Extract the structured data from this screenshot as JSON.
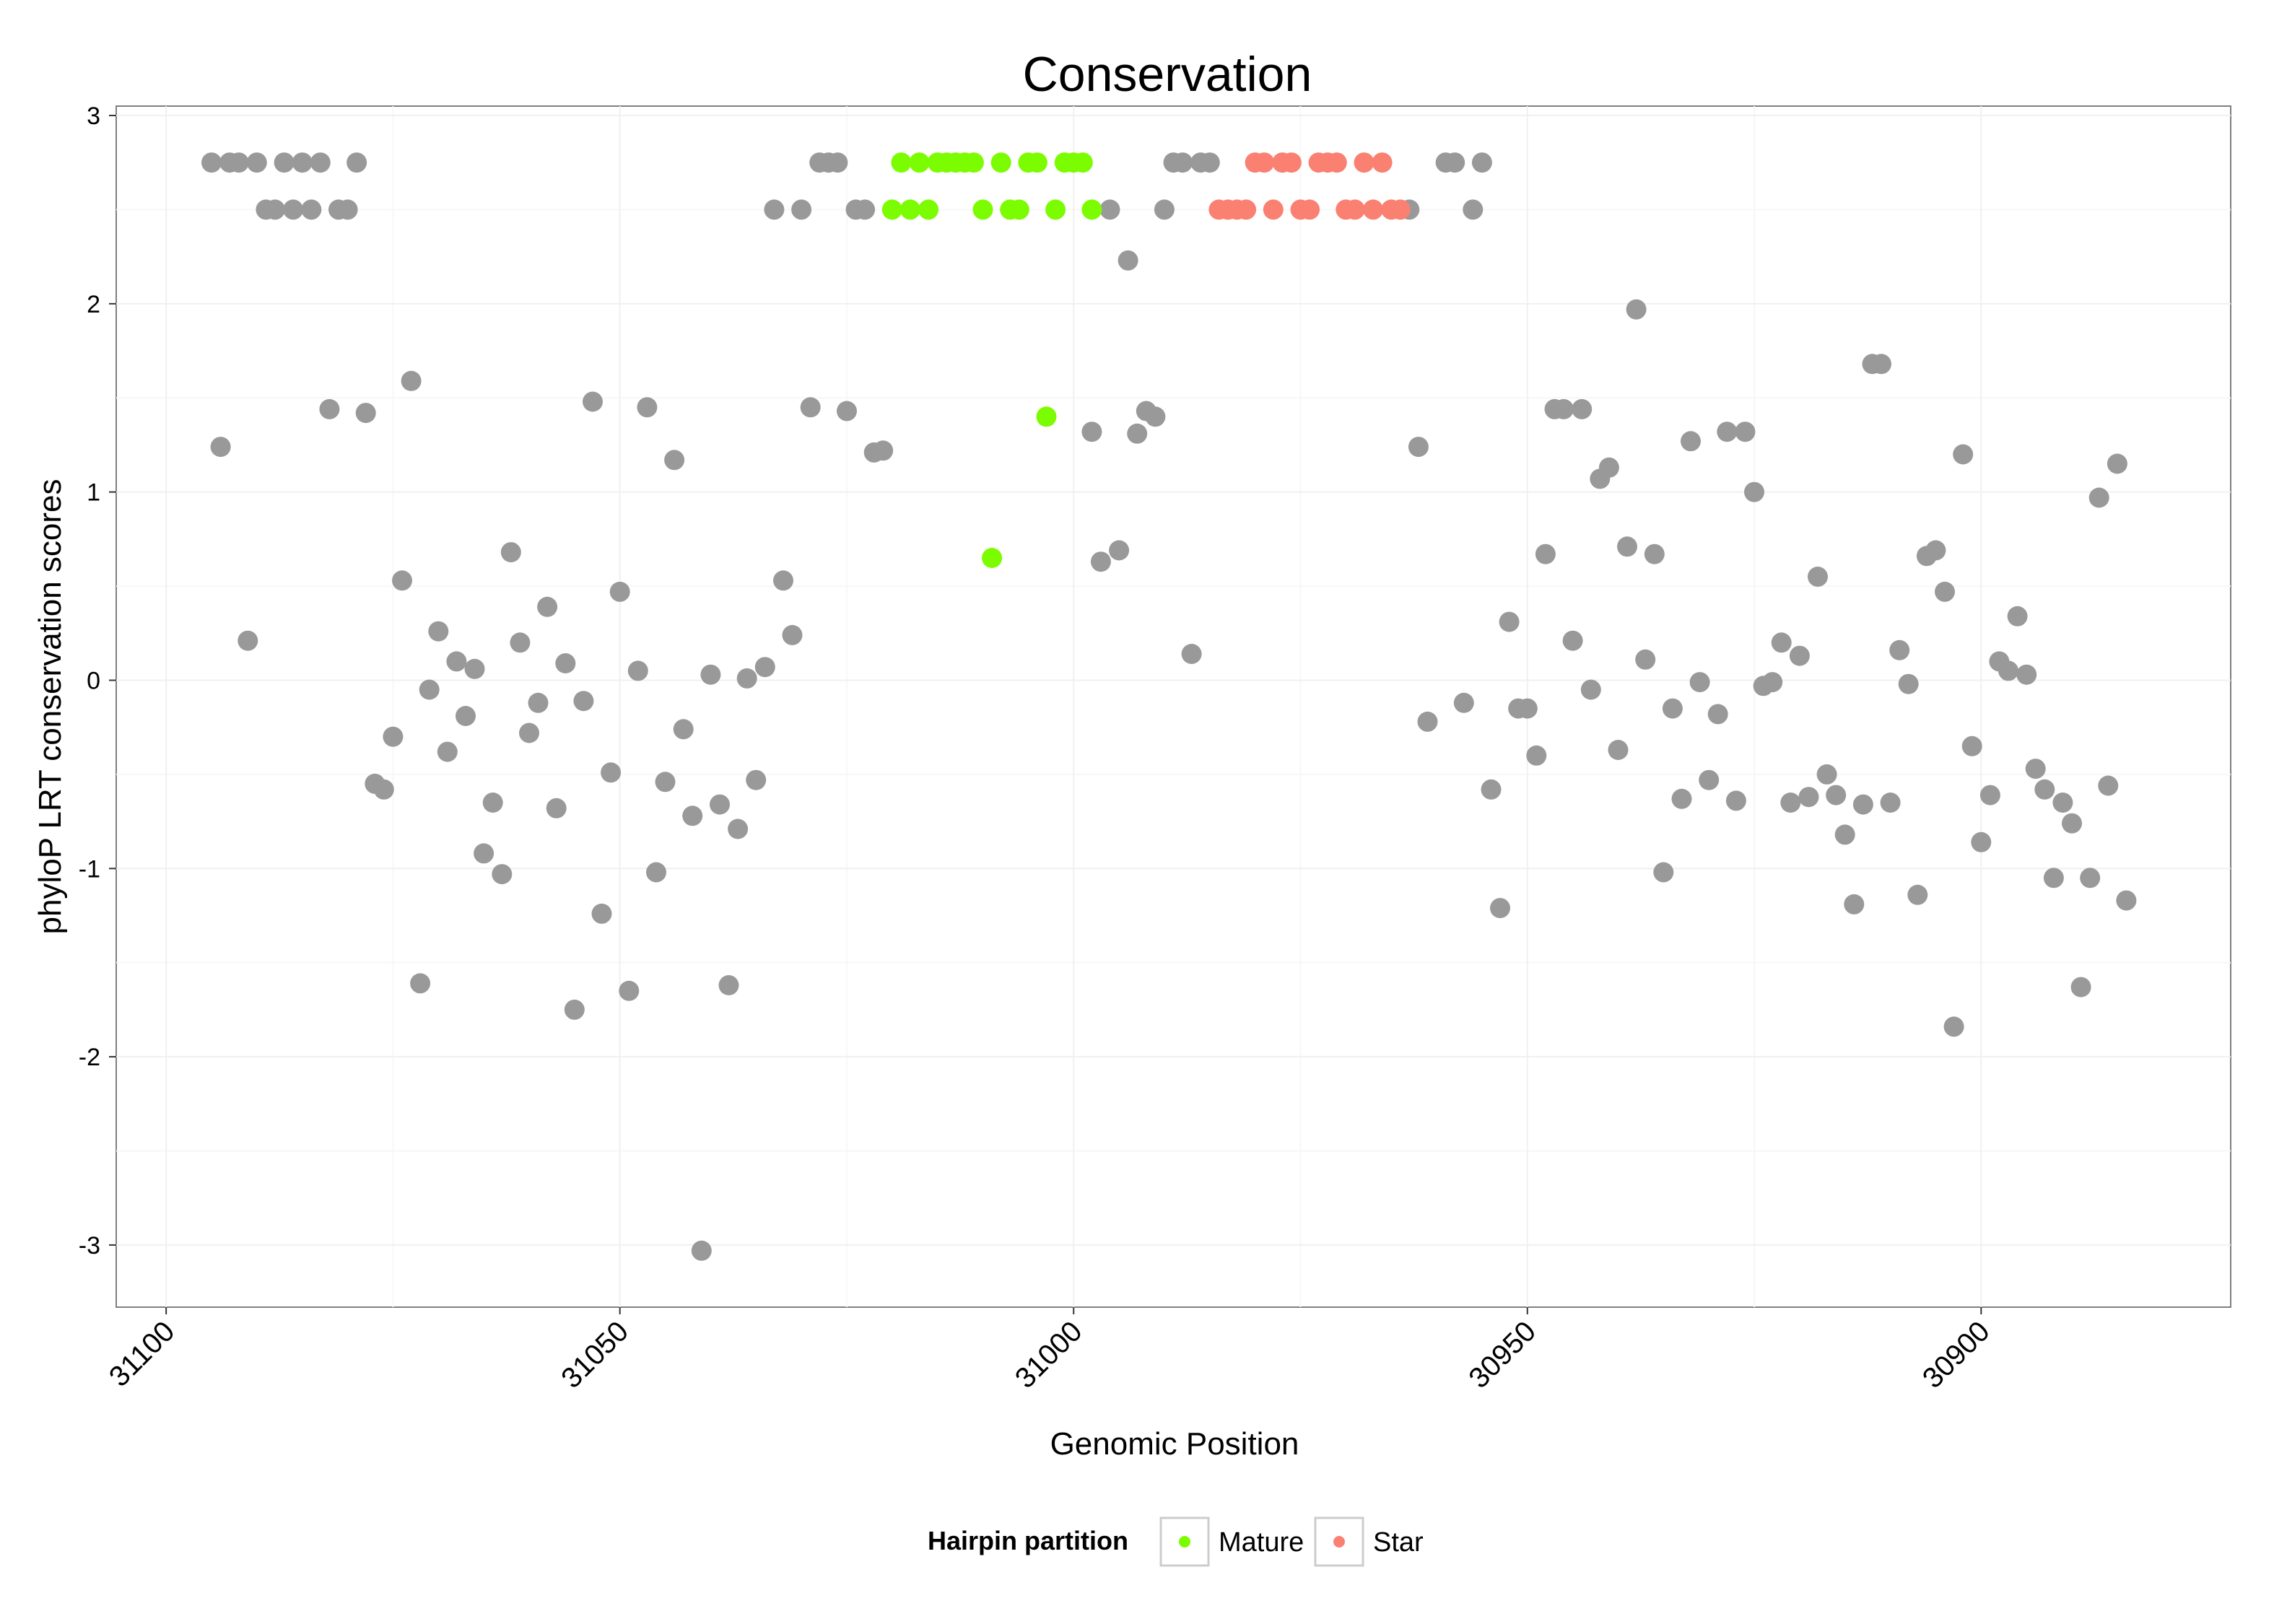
{
  "chart_data": {
    "type": "scatter",
    "title": "Conservation",
    "xlabel": "Genomic Position",
    "ylabel": "phyloP LRT conservation scores",
    "xlim": [
      31105.5,
      30872.5
    ],
    "ylim": [
      -3.33,
      3.05
    ],
    "x_reversed": true,
    "x_ticks": [
      31100,
      31050,
      31000,
      30950,
      30900
    ],
    "x_tick_labels": [
      "31100",
      "31050",
      "31000",
      "30950",
      "30900"
    ],
    "y_ticks": [
      3,
      2,
      1,
      0,
      -1,
      -2,
      -3
    ],
    "y_tick_labels": [
      "3",
      "2",
      "1",
      "0",
      "-1",
      "-2",
      "-3"
    ],
    "grid": true,
    "legend": {
      "title": "Hairpin partition",
      "position": "bottom",
      "entries": [
        {
          "label": "Mature",
          "color": "#7CFC00"
        },
        {
          "label": "Star",
          "color": "#FA8072"
        }
      ]
    },
    "colors": {
      "Other": "#999999",
      "Mature": "#7CFC00",
      "Star": "#FA8072"
    },
    "series": [
      {
        "name": "Other",
        "points": [
          [
            31095,
            2.75
          ],
          [
            31093,
            2.75
          ],
          [
            31092,
            2.75
          ],
          [
            31090,
            2.75
          ],
          [
            31087,
            2.75
          ],
          [
            31085,
            2.75
          ],
          [
            31083,
            2.75
          ],
          [
            31079,
            2.75
          ],
          [
            31089,
            2.5
          ],
          [
            31088,
            2.5
          ],
          [
            31086,
            2.5
          ],
          [
            31084,
            2.5
          ],
          [
            31081,
            2.5
          ],
          [
            31080,
            2.5
          ],
          [
            31094,
            1.24
          ],
          [
            31091,
            0.21
          ],
          [
            31082,
            1.44
          ],
          [
            31078,
            1.42
          ],
          [
            31073,
            1.59
          ],
          [
            31077,
            -0.55
          ],
          [
            31076,
            -0.58
          ],
          [
            31075,
            -0.3
          ],
          [
            31074,
            0.53
          ],
          [
            31072,
            -1.61
          ],
          [
            31071,
            -0.05
          ],
          [
            31070,
            0.26
          ],
          [
            31069,
            -0.38
          ],
          [
            31068,
            0.1
          ],
          [
            31067,
            -0.19
          ],
          [
            31066,
            0.06
          ],
          [
            31065,
            -0.92
          ],
          [
            31064,
            -0.65
          ],
          [
            31063,
            -1.03
          ],
          [
            31062,
            0.68
          ],
          [
            31061,
            0.2
          ],
          [
            31060,
            -0.28
          ],
          [
            31059,
            -0.12
          ],
          [
            31058,
            0.39
          ],
          [
            31057,
            -0.68
          ],
          [
            31056,
            0.09
          ],
          [
            31055,
            -1.75
          ],
          [
            31054,
            -0.11
          ],
          [
            31053,
            1.48
          ],
          [
            31052,
            -1.24
          ],
          [
            31051,
            -0.49
          ],
          [
            31050,
            0.47
          ],
          [
            31049,
            -1.65
          ],
          [
            31048,
            0.05
          ],
          [
            31047,
            1.45
          ],
          [
            31046,
            -1.02
          ],
          [
            31045,
            -0.54
          ],
          [
            31044,
            1.17
          ],
          [
            31043,
            -0.26
          ],
          [
            31042,
            -0.72
          ],
          [
            31041,
            -3.03
          ],
          [
            31040,
            0.03
          ],
          [
            31039,
            -0.66
          ],
          [
            31038,
            -1.62
          ],
          [
            31037,
            -0.79
          ],
          [
            31036,
            0.01
          ],
          [
            31035,
            -0.53
          ],
          [
            31034,
            0.07
          ],
          [
            31033,
            2.5
          ],
          [
            31032,
            0.53
          ],
          [
            31031,
            0.24
          ],
          [
            31030,
            2.5
          ],
          [
            31029,
            1.45
          ],
          [
            31028,
            2.75
          ],
          [
            31027,
            2.75
          ],
          [
            31026,
            2.75
          ],
          [
            31025,
            1.43
          ],
          [
            31024,
            2.5
          ],
          [
            31023,
            2.5
          ],
          [
            31022,
            1.21
          ],
          [
            31021,
            1.22
          ],
          [
            30998,
            1.32
          ],
          [
            30997,
            0.63
          ],
          [
            30996,
            2.5
          ],
          [
            30995,
            0.69
          ],
          [
            30994,
            2.23
          ],
          [
            30993,
            1.31
          ],
          [
            30992,
            1.43
          ],
          [
            30991,
            1.4
          ],
          [
            30990,
            2.5
          ],
          [
            30989,
            2.75
          ],
          [
            30988,
            2.75
          ],
          [
            30987,
            0.14
          ],
          [
            30986,
            2.75
          ],
          [
            30985,
            2.75
          ],
          [
            30963,
            2.5
          ],
          [
            30962,
            1.24
          ],
          [
            30961,
            -0.22
          ],
          [
            30959,
            2.75
          ],
          [
            30958,
            2.75
          ],
          [
            30957,
            -0.12
          ],
          [
            30956,
            2.5
          ],
          [
            30955,
            2.75
          ],
          [
            30954,
            -0.58
          ],
          [
            30953,
            -1.21
          ],
          [
            30952,
            0.31
          ],
          [
            30951,
            -0.15
          ],
          [
            30950,
            -0.15
          ],
          [
            30949,
            -0.4
          ],
          [
            30948,
            0.67
          ],
          [
            30947,
            1.44
          ],
          [
            30946,
            1.44
          ],
          [
            30945,
            0.21
          ],
          [
            30944,
            1.44
          ],
          [
            30943,
            -0.05
          ],
          [
            30942,
            1.07
          ],
          [
            30941,
            1.13
          ],
          [
            30940,
            -0.37
          ],
          [
            30939,
            0.71
          ],
          [
            30938,
            1.97
          ],
          [
            30937,
            0.11
          ],
          [
            30936,
            0.67
          ],
          [
            30935,
            -1.02
          ],
          [
            30934,
            -0.15
          ],
          [
            30933,
            -0.63
          ],
          [
            30932,
            1.27
          ],
          [
            30931,
            -0.01
          ],
          [
            30930,
            -0.53
          ],
          [
            30929,
            -0.18
          ],
          [
            30928,
            1.32
          ],
          [
            30927,
            -0.64
          ],
          [
            30926,
            1.32
          ],
          [
            30925,
            1.0
          ],
          [
            30924,
            -0.03
          ],
          [
            30923,
            -0.01
          ],
          [
            30922,
            0.2
          ],
          [
            30921,
            -0.65
          ],
          [
            30920,
            0.13
          ],
          [
            30919,
            -0.62
          ],
          [
            30918,
            0.55
          ],
          [
            30917,
            -0.5
          ],
          [
            30916,
            -0.61
          ],
          [
            30915,
            -0.82
          ],
          [
            30914,
            -1.19
          ],
          [
            30913,
            -0.66
          ],
          [
            30912,
            1.68
          ],
          [
            30911,
            1.68
          ],
          [
            30910,
            -0.65
          ],
          [
            30909,
            0.16
          ],
          [
            30908,
            -0.02
          ],
          [
            30907,
            -1.14
          ],
          [
            30906,
            0.66
          ],
          [
            30905,
            0.69
          ],
          [
            30904,
            0.47
          ],
          [
            30903,
            -1.84
          ],
          [
            30902,
            1.2
          ],
          [
            30901,
            -0.35
          ],
          [
            30900,
            -0.86
          ],
          [
            30899,
            -0.61
          ],
          [
            30898,
            0.1
          ],
          [
            30897,
            0.05
          ],
          [
            30896,
            0.34
          ],
          [
            30895,
            0.03
          ],
          [
            30894,
            -0.47
          ],
          [
            30893,
            -0.58
          ],
          [
            30892,
            -1.05
          ],
          [
            30891,
            -0.65
          ],
          [
            30890,
            -0.76
          ],
          [
            30889,
            -1.63
          ],
          [
            30888,
            -1.05
          ],
          [
            30887,
            0.97
          ],
          [
            30886,
            -0.56
          ],
          [
            30885,
            1.15
          ],
          [
            30884,
            -1.17
          ]
        ]
      },
      {
        "name": "Mature",
        "points": [
          [
            31020,
            2.5
          ],
          [
            31019,
            2.75
          ],
          [
            31018,
            2.5
          ],
          [
            31017,
            2.75
          ],
          [
            31016,
            2.5
          ],
          [
            31015,
            2.75
          ],
          [
            31014,
            2.75
          ],
          [
            31013,
            2.75
          ],
          [
            31012,
            2.75
          ],
          [
            31011,
            2.75
          ],
          [
            31010,
            2.5
          ],
          [
            31009,
            0.65
          ],
          [
            31008,
            2.75
          ],
          [
            31007,
            2.5
          ],
          [
            31006,
            2.5
          ],
          [
            31005,
            2.75
          ],
          [
            31004,
            2.75
          ],
          [
            31003,
            1.4
          ],
          [
            31002,
            2.5
          ],
          [
            31001,
            2.75
          ],
          [
            31000,
            2.75
          ],
          [
            30999,
            2.75
          ],
          [
            30998,
            2.5
          ]
        ]
      },
      {
        "name": "Star",
        "points": [
          [
            30984,
            2.5
          ],
          [
            30983,
            2.5
          ],
          [
            30982,
            2.5
          ],
          [
            30981,
            2.5
          ],
          [
            30980,
            2.75
          ],
          [
            30979,
            2.75
          ],
          [
            30978,
            2.5
          ],
          [
            30977,
            2.75
          ],
          [
            30976,
            2.75
          ],
          [
            30975,
            2.5
          ],
          [
            30974,
            2.5
          ],
          [
            30973,
            2.75
          ],
          [
            30972,
            2.75
          ],
          [
            30971,
            2.75
          ],
          [
            30970,
            2.5
          ],
          [
            30969,
            2.5
          ],
          [
            30968,
            2.75
          ],
          [
            30967,
            2.5
          ],
          [
            30966,
            2.75
          ],
          [
            30965,
            2.5
          ],
          [
            30964,
            2.5
          ]
        ]
      }
    ]
  }
}
